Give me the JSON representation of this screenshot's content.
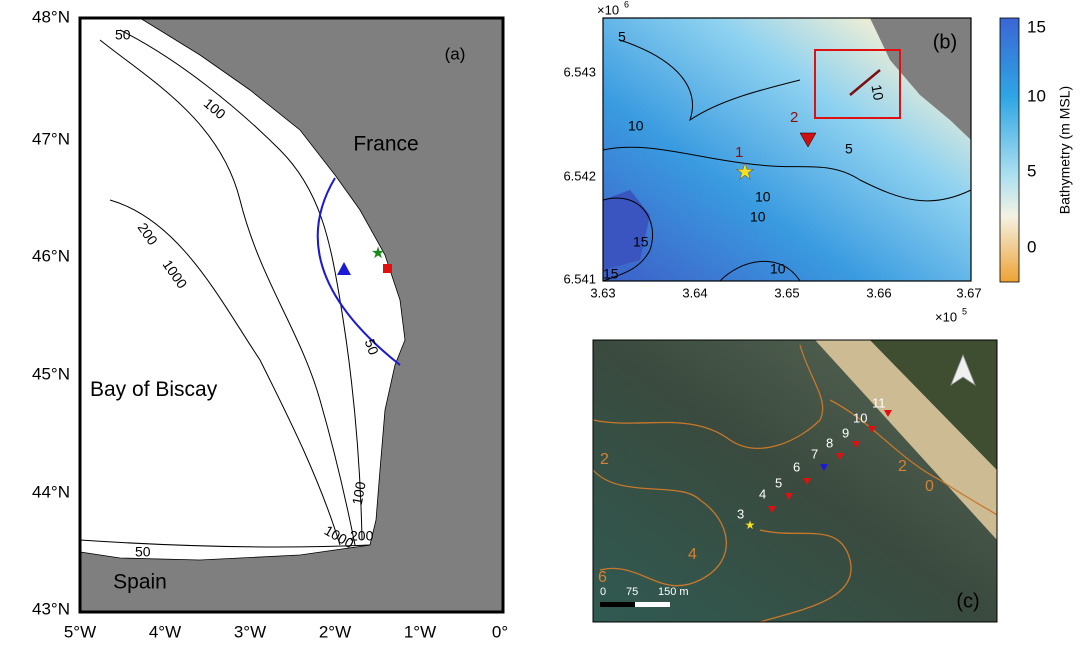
{
  "panel_a": {
    "label": "(a)",
    "lat_labels": [
      "48°N",
      "47°N",
      "46°N",
      "45°N",
      "44°N",
      "43°N"
    ],
    "lon_labels": [
      "5°W",
      "4°W",
      "3°W",
      "2°W",
      "1°W",
      "0°"
    ],
    "places": [
      "France",
      "Bay of Biscay",
      "Spain"
    ],
    "contour_labels": [
      "50",
      "100",
      "200",
      "1000",
      "50",
      "100",
      "1000",
      "200",
      "50"
    ]
  },
  "panel_b": {
    "label": "(b)",
    "x_ticks": [
      "3.63",
      "3.64",
      "3.65",
      "3.66",
      "3.67"
    ],
    "x_multiplier": "×10",
    "x_exponent": "5",
    "y_ticks": [
      "6.543",
      "6.542",
      "6.541"
    ],
    "y_multiplier": "×10",
    "y_exponent": "6",
    "contour_labels": [
      "5",
      "10",
      "5",
      "10",
      "10",
      "15",
      "15",
      "10",
      "10"
    ],
    "point_labels": [
      "1",
      "2"
    ],
    "colorbar_ticks": [
      "15",
      "10",
      "5",
      "0"
    ],
    "colorbar_label": "Bathymetry (m MSL)"
  },
  "panel_c": {
    "label": "(c)",
    "point_labels": [
      "3",
      "4",
      "5",
      "6",
      "7",
      "8",
      "9",
      "10",
      "11"
    ],
    "contour_labels": [
      "2",
      "4",
      "6",
      "0",
      "2"
    ],
    "scale_labels": [
      "0",
      "75",
      "150 m"
    ]
  }
}
